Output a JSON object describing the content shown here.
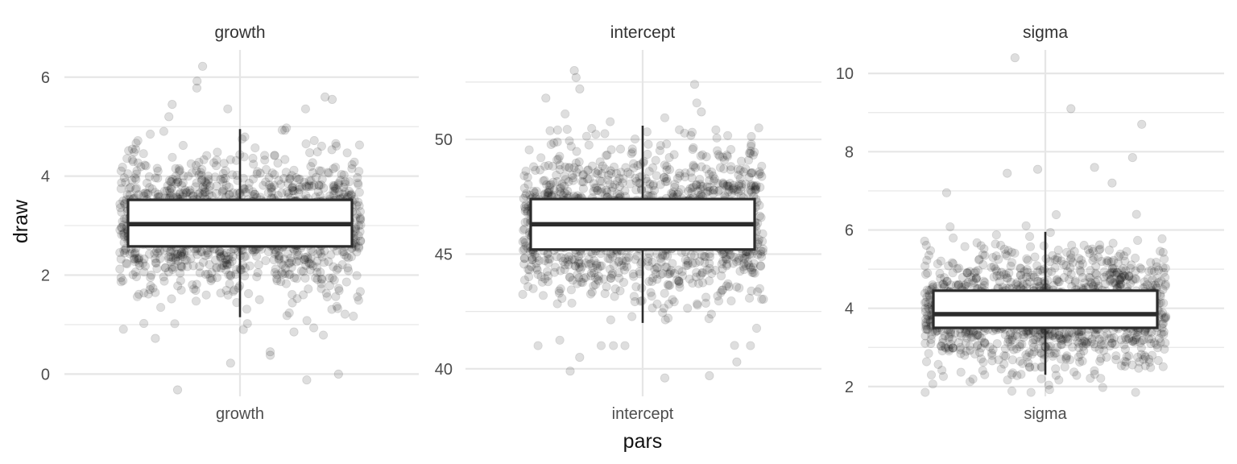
{
  "chart_data": {
    "type": "boxplot",
    "xlabel": "pars",
    "ylabel": "draw",
    "jitter_points": true,
    "grid": true,
    "point_color": "#000000",
    "point_opacity": 0.13,
    "box_fill": "#ffffff",
    "box_stroke": "#2b2b2b",
    "grid_color": "#e6e6e6",
    "panels": [
      {
        "title": "growth",
        "category": "growth",
        "ylim": [
          -0.45,
          6.55
        ],
        "yticks": [
          0,
          2,
          4,
          6
        ],
        "yminor": [
          1,
          3,
          5
        ],
        "box": {
          "whisker_low": 1.15,
          "q1": 2.58,
          "median": 3.03,
          "q3": 3.52,
          "whisker_high": 4.95
        },
        "point_center": 3.05,
        "point_sd": 0.68,
        "point_count": 1400,
        "outliers": [
          -0.32,
          -0.12,
          0.0,
          0.22,
          0.38,
          0.45,
          0.72,
          0.85,
          5.2,
          5.45,
          5.55,
          5.6,
          5.78,
          5.92,
          6.22
        ]
      },
      {
        "title": "intercept",
        "category": "intercept",
        "ylim": [
          38.8,
          53.9
        ],
        "yticks": [
          40,
          45,
          50
        ],
        "yminor": [
          42.5,
          47.5,
          52.5
        ],
        "box": {
          "whisker_low": 42.0,
          "q1": 45.2,
          "median": 46.3,
          "q3": 47.4,
          "whisker_high": 50.6
        },
        "point_center": 46.3,
        "point_sd": 1.65,
        "point_count": 1400,
        "outliers": [
          39.6,
          39.7,
          39.9,
          40.3,
          40.5,
          51.2,
          51.8,
          52.2,
          52.4,
          52.7,
          53.0
        ]
      },
      {
        "title": "sigma",
        "category": "sigma",
        "ylim": [
          1.75,
          10.6
        ],
        "yticks": [
          2,
          4,
          6,
          8,
          10
        ],
        "yminor": [
          3,
          5,
          7,
          9
        ],
        "box": {
          "whisker_low": 2.3,
          "q1": 3.5,
          "median": 3.85,
          "q3": 4.45,
          "whisker_high": 5.95
        },
        "point_center": 3.95,
        "point_sd": 0.75,
        "point_count": 1400,
        "outliers": [
          6.95,
          7.2,
          7.45,
          7.55,
          7.6,
          7.85,
          8.7,
          9.1,
          10.4
        ]
      }
    ]
  }
}
